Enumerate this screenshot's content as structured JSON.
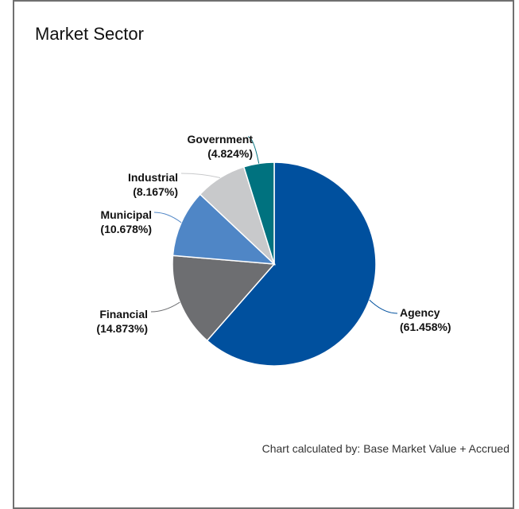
{
  "panel": {
    "title": "Market Sector",
    "footnote": "Chart calculated by: Base Market Value + Accrued"
  },
  "chart_data": {
    "type": "pie",
    "title": "Market Sector",
    "start": "top",
    "direction": "clockwise",
    "slices": [
      {
        "name": "Agency",
        "value": 61.458,
        "label": "(61.458%)",
        "color": "#00509E"
      },
      {
        "name": "Financial",
        "value": 14.873,
        "label": "(14.873%)",
        "color": "#6D6E71"
      },
      {
        "name": "Municipal",
        "value": 10.678,
        "label": "(10.678%)",
        "color": "#4F86C6"
      },
      {
        "name": "Industrial",
        "value": 8.167,
        "label": "(8.167%)",
        "color": "#C8C9CB"
      },
      {
        "name": "Government",
        "value": 4.824,
        "label": "(4.824%)",
        "color": "#00727F"
      }
    ]
  }
}
